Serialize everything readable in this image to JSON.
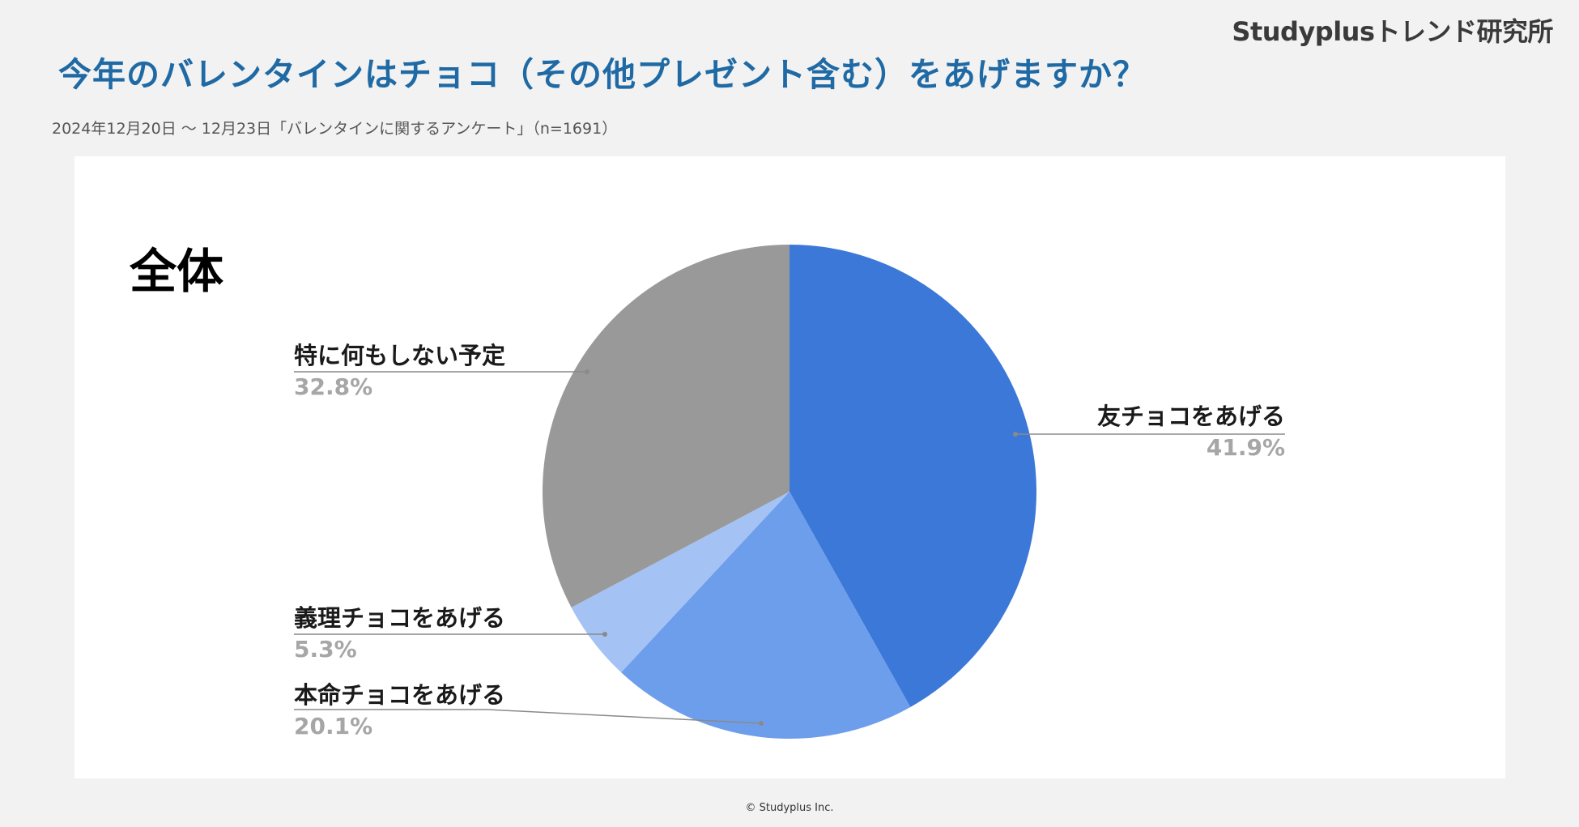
{
  "brand": "Studyplusトレンド研究所",
  "title": "今年のバレンタインはチョコ（その他プレゼント含む）をあげますか？",
  "subtitle": "2024年12月20日 〜 12月23日「バレンタインに関するアンケート」（n=1691）",
  "footer": "© Studyplus Inc.",
  "chart_data": {
    "type": "pie",
    "title": "全体",
    "start_angle": "12 o'clock",
    "direction": "clockwise",
    "slices": [
      {
        "label": "友チョコをあげる",
        "value": 41.9,
        "value_label": "41.9%",
        "color": "#3c78d8"
      },
      {
        "label": "本命チョコをあげる",
        "value": 20.1,
        "value_label": "20.1%",
        "color": "#6d9eeb"
      },
      {
        "label": "義理チョコをあげる",
        "value": 5.3,
        "value_label": "5.3%",
        "color": "#a4c2f4"
      },
      {
        "label": "特に何もしない予定",
        "value": 32.8,
        "value_label": "32.8%",
        "color": "#999999"
      }
    ]
  }
}
